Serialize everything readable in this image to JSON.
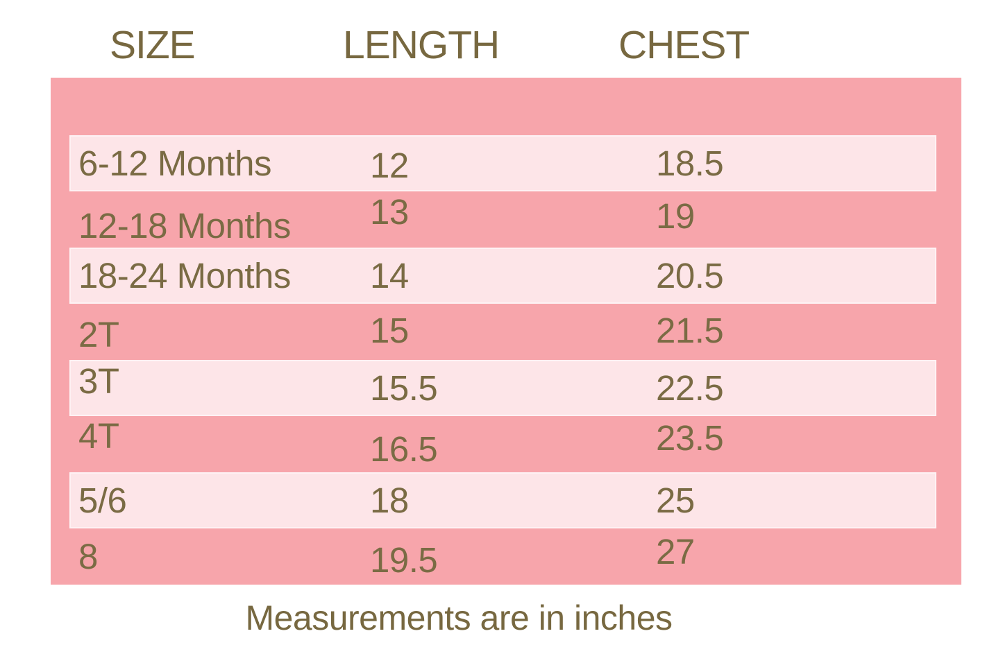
{
  "page": {
    "background": "#ffffff"
  },
  "colors": {
    "panel_pink": "#f7a5ab",
    "row_highlight_pink": "#fde5e8",
    "row_highlight_border": "#fef2f4",
    "text_olive": "#7a6b44"
  },
  "chart_data": {
    "type": "table",
    "columns": [
      "SIZE",
      "LENGTH",
      "CHEST"
    ],
    "note": "Measurements are in inches",
    "units": "inches",
    "rows": [
      {
        "size": "6-12 Months",
        "length": "12",
        "chest": "18.5"
      },
      {
        "size": "12-18 Months",
        "length": "13",
        "chest": "19"
      },
      {
        "size": "18-24 Months",
        "length": "14",
        "chest": "20.5"
      },
      {
        "size": "2T",
        "length": "15",
        "chest": "21.5"
      },
      {
        "size": "3T",
        "length": "15.5",
        "chest": "22.5"
      },
      {
        "size": "4T",
        "length": "16.5",
        "chest": "23.5"
      },
      {
        "size": "5/6",
        "length": "18",
        "chest": "25"
      },
      {
        "size": "8",
        "length": "19.5",
        "chest": "27"
      }
    ]
  }
}
